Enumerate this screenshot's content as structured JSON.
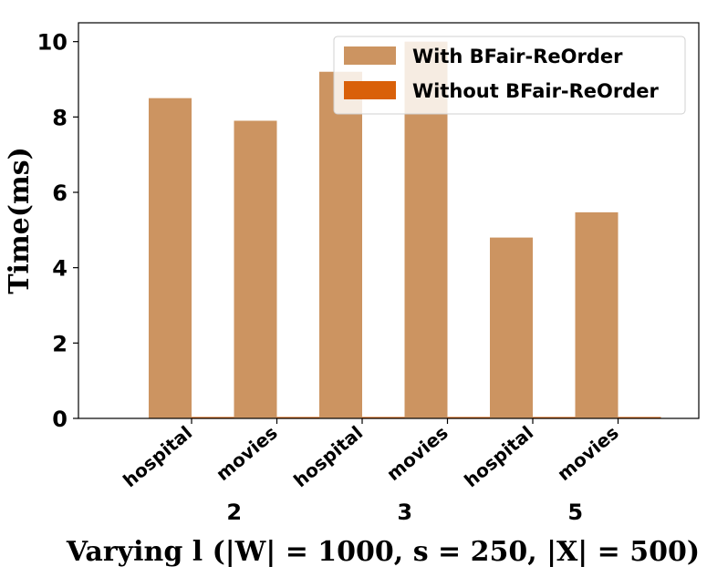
{
  "chart_data": {
    "type": "bar",
    "groups": [
      {
        "label": "2",
        "categories": [
          "hospital",
          "movies"
        ]
      },
      {
        "label": "3",
        "categories": [
          "hospital",
          "movies"
        ]
      },
      {
        "label": "5",
        "categories": [
          "hospital",
          "movies"
        ]
      }
    ],
    "series": [
      {
        "name": "With BFair-ReOrder",
        "color": "#cc9461",
        "values": [
          8.5,
          7.9,
          9.2,
          10.0,
          4.8,
          5.47
        ]
      },
      {
        "name": "Without BFair-ReOrder",
        "color": "#d96009",
        "values": [
          0.02,
          0.02,
          0.02,
          0.02,
          0.02,
          0.02
        ]
      }
    ],
    "ylabel": "Time(ms)",
    "xlabel": "Varying l (|W| = 1000, s = 250, |X| = 500)",
    "ylim": [
      0,
      10.5
    ],
    "yticks": [
      0,
      2,
      4,
      6,
      8,
      10
    ],
    "grid": false,
    "legend_position": "top-right"
  }
}
